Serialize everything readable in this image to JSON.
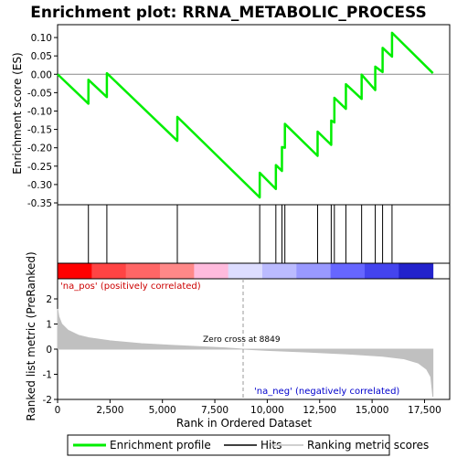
{
  "title": "Enrichment plot: RRNA_METABOLIC_PROCESS",
  "chart_data": {
    "type": "line",
    "title": "Enrichment plot: RRNA_METABOLIC_PROCESS",
    "xlabel": "Rank in Ordered Dataset",
    "xlim": [
      0,
      18700
    ],
    "x_ticks": [
      0,
      2500,
      5000,
      7500,
      10000,
      12500,
      15000,
      17500
    ],
    "x_tick_labels": [
      "0",
      "2,500",
      "5,000",
      "7,500",
      "10,000",
      "12,500",
      "15,000",
      "17,500"
    ],
    "es_panel": {
      "ylabel": "Enrichment score (ES)",
      "ylim": [
        -0.355,
        0.135
      ],
      "y_ticks": [
        0.1,
        0.05,
        0.0,
        -0.05,
        -0.1,
        -0.15,
        -0.2,
        -0.25,
        -0.3,
        -0.35
      ],
      "y_tick_labels": [
        "0.10",
        "0.05",
        "0.00",
        "-0.05",
        "-0.10",
        "-0.15",
        "-0.20",
        "-0.25",
        "-0.30",
        "-0.35"
      ],
      "series": [
        {
          "name": "Enrichment profile",
          "color": "#00ee00",
          "points": [
            [
              0,
              0.0
            ],
            [
              1470,
              -0.08
            ],
            [
              1471,
              -0.015
            ],
            [
              2350,
              -0.062
            ],
            [
              2351,
              0.003
            ],
            [
              5710,
              -0.181
            ],
            [
              5711,
              -0.116
            ],
            [
              9640,
              -0.335
            ],
            [
              9641,
              -0.268
            ],
            [
              10410,
              -0.312
            ],
            [
              10411,
              -0.247
            ],
            [
              10700,
              -0.263
            ],
            [
              10701,
              -0.198
            ],
            [
              10840,
              -0.2
            ],
            [
              10841,
              -0.135
            ],
            [
              12400,
              -0.222
            ],
            [
              12401,
              -0.156
            ],
            [
              13050,
              -0.192
            ],
            [
              13051,
              -0.126
            ],
            [
              13200,
              -0.131
            ],
            [
              13201,
              -0.064
            ],
            [
              13750,
              -0.094
            ],
            [
              13751,
              -0.027
            ],
            [
              14500,
              -0.067
            ],
            [
              14501,
              -0.001
            ],
            [
              15150,
              -0.043
            ],
            [
              15151,
              0.021
            ],
            [
              15500,
              0.006
            ],
            [
              15501,
              0.072
            ],
            [
              15950,
              0.048
            ],
            [
              15951,
              0.113
            ],
            [
              17900,
              0.003
            ]
          ]
        }
      ]
    },
    "hits": [
      1470,
      2350,
      5710,
      9640,
      10410,
      10700,
      10840,
      12400,
      13050,
      13200,
      13750,
      14500,
      15150,
      15500,
      15950
    ],
    "metric_panel": {
      "ylabel": "Ranked list metric (PreRanked)",
      "ylim": [
        -2.0,
        2.8
      ],
      "y_ticks": [
        2,
        1,
        0,
        -1,
        -2
      ],
      "y_tick_labels": [
        "2",
        "1",
        "0",
        "-1",
        "-2"
      ],
      "series": [
        {
          "name": "Ranking metric scores",
          "color": "#c0c0c0",
          "points": [
            [
              0,
              1.6
            ],
            [
              60,
              1.3
            ],
            [
              200,
              1.0
            ],
            [
              500,
              0.75
            ],
            [
              1000,
              0.55
            ],
            [
              1500,
              0.45
            ],
            [
              2500,
              0.33
            ],
            [
              4000,
              0.22
            ],
            [
              5500,
              0.15
            ],
            [
              7000,
              0.09
            ],
            [
              8000,
              0.05
            ],
            [
              8849,
              0.0
            ],
            [
              10000,
              -0.05
            ],
            [
              12000,
              -0.12
            ],
            [
              14000,
              -0.2
            ],
            [
              15500,
              -0.28
            ],
            [
              16500,
              -0.38
            ],
            [
              17200,
              -0.55
            ],
            [
              17600,
              -0.8
            ],
            [
              17800,
              -1.1
            ],
            [
              17900,
              -1.9
            ]
          ]
        }
      ],
      "zero_cross_label": "Zero cross at 8849",
      "zero_cross": 8849,
      "pos_label": "'na_pos' (positively correlated)",
      "neg_label": "'na_neg' (negatively correlated)"
    },
    "heatmap_colors": [
      "#ff0000",
      "#ff4444",
      "#ff6666",
      "#ff8888",
      "#ffbbdd",
      "#ddddff",
      "#bbbbff",
      "#9999ff",
      "#6666ff",
      "#4444ee",
      "#2222cc"
    ],
    "legend": {
      "placement": "bottom",
      "items": [
        {
          "label": "Enrichment profile",
          "color": "#00ee00"
        },
        {
          "label": "Hits",
          "color": "#000000"
        },
        {
          "label": "Ranking metric scores",
          "color": "#c0c0c0"
        }
      ]
    },
    "grid": false
  }
}
